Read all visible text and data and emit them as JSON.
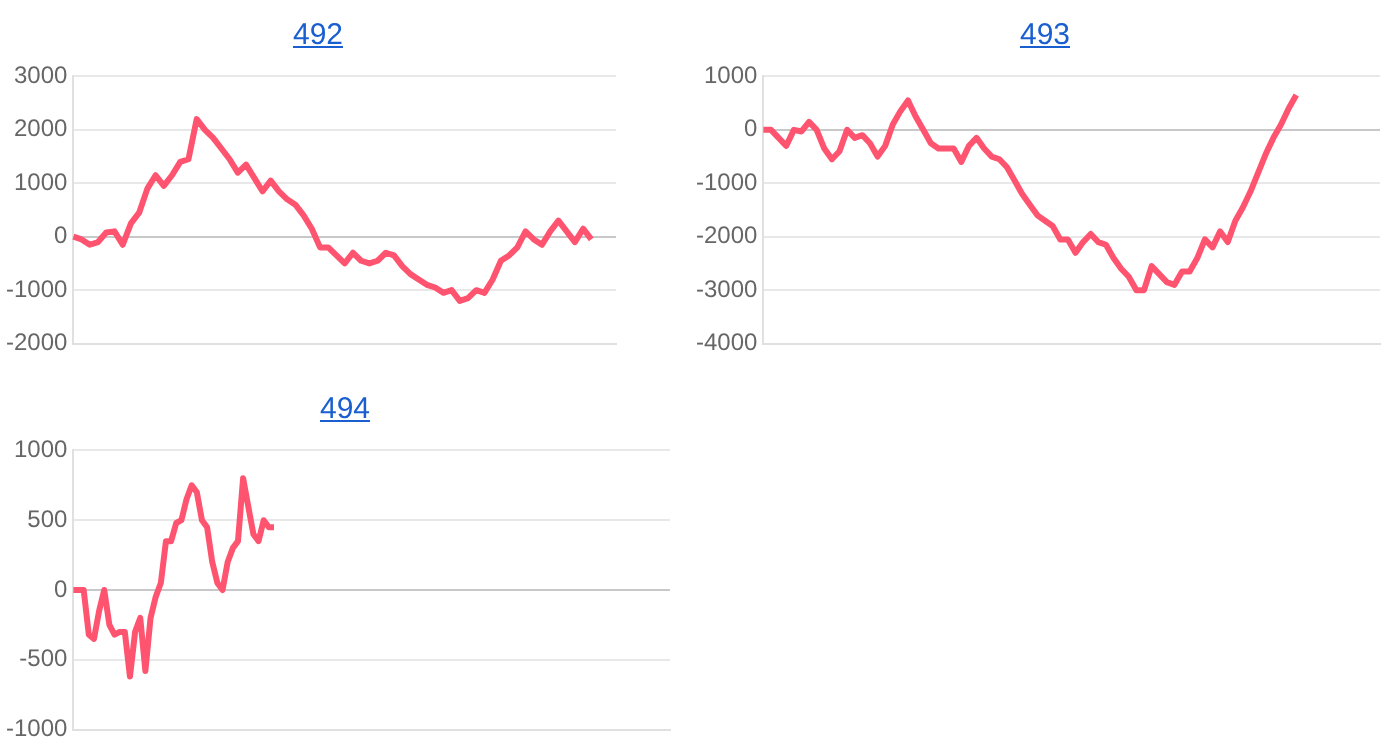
{
  "chart_data": [
    {
      "type": "line",
      "title": "492",
      "categories": [
        null,
        null,
        null,
        null,
        null,
        null,
        null,
        null,
        null,
        null,
        null,
        null,
        null,
        null,
        null,
        null,
        null,
        null,
        null,
        null,
        null,
        null,
        null,
        null,
        null,
        null,
        null,
        null,
        null,
        null,
        null,
        null,
        null,
        null,
        null,
        null,
        null,
        null,
        null,
        null,
        null,
        null,
        null,
        null,
        null,
        null,
        null,
        null,
        null,
        null,
        null,
        null,
        null,
        null,
        null,
        null,
        null,
        null,
        null,
        null,
        null,
        null,
        null,
        null,
        null,
        null,
        null
      ],
      "series": [
        {
          "color": "#ff5470",
          "values": [
            0,
            -50,
            -150,
            -100,
            80,
            100,
            -150,
            250,
            450,
            900,
            1150,
            950,
            1150,
            1400,
            1450,
            2200,
            2000,
            1850,
            1650,
            1450,
            1200,
            1350,
            1100,
            850,
            1050,
            850,
            700,
            600,
            400,
            150,
            -200,
            -200,
            -350,
            -500,
            -300,
            -450,
            -500,
            -450,
            -300,
            -350,
            -550,
            -700,
            -800,
            -900,
            -950,
            -1050,
            -1000,
            -1200,
            -1150,
            -1000,
            -1050,
            -800,
            -450,
            -350,
            -200,
            100,
            -50,
            -150,
            100,
            300,
            100,
            -100,
            150,
            -50,
            null,
            null,
            null
          ]
        }
      ],
      "ylim": [
        -2000,
        3000
      ],
      "yticks": [
        -2000,
        -1000,
        0,
        1000,
        2000,
        3000
      ],
      "grid": "y",
      "legend": false,
      "marker": "none",
      "line_style": "solid",
      "tick_labels": "y"
    },
    {
      "type": "line",
      "title": "493",
      "categories": [
        null,
        null,
        null,
        null,
        null,
        null,
        null,
        null,
        null,
        null,
        null,
        null,
        null,
        null,
        null,
        null,
        null,
        null,
        null,
        null,
        null,
        null,
        null,
        null,
        null,
        null,
        null,
        null,
        null,
        null,
        null,
        null,
        null,
        null,
        null,
        null,
        null,
        null,
        null,
        null,
        null,
        null,
        null,
        null,
        null,
        null,
        null,
        null,
        null,
        null,
        null,
        null,
        null,
        null,
        null,
        null,
        null,
        null,
        null,
        null,
        null,
        null,
        null,
        null,
        null,
        null,
        null,
        null,
        null,
        null,
        null,
        null,
        null,
        null,
        null,
        null,
        null,
        null,
        null,
        null,
        null,
        null
      ],
      "series": [
        {
          "color": "#ff5470",
          "values": [
            0,
            0,
            -150,
            -300,
            0,
            -30,
            150,
            0,
            -350,
            -550,
            -400,
            0,
            -150,
            -100,
            -250,
            -500,
            -300,
            100,
            350,
            550,
            250,
            0,
            -250,
            -350,
            -350,
            -350,
            -600,
            -300,
            -150,
            -350,
            -500,
            -550,
            -700,
            -950,
            -1200,
            -1400,
            -1600,
            -1700,
            -1800,
            -2050,
            -2050,
            -2300,
            -2100,
            -1950,
            -2100,
            -2150,
            -2400,
            -2600,
            -2750,
            -3000,
            -3000,
            -2550,
            -2700,
            -2850,
            -2900,
            -2650,
            -2650,
            -2400,
            -2050,
            -2200,
            -1900,
            -2100,
            -1700,
            -1450,
            -1150,
            -800,
            -450,
            -150,
            100,
            400,
            650,
            null,
            null,
            null,
            null,
            null,
            null,
            null,
            null,
            null,
            null,
            null
          ]
        }
      ],
      "ylim": [
        -4000,
        1000
      ],
      "yticks": [
        -4000,
        -3000,
        -2000,
        -1000,
        0,
        1000
      ],
      "grid": "y",
      "legend": false,
      "marker": "none",
      "line_style": "solid",
      "tick_labels": "y"
    },
    {
      "type": "line",
      "title": "494",
      "categories": [
        null,
        null,
        null,
        null,
        null,
        null,
        null,
        null,
        null,
        null,
        null,
        null,
        null,
        null,
        null,
        null,
        null,
        null,
        null,
        null,
        null,
        null,
        null,
        null,
        null,
        null,
        null,
        null,
        null,
        null,
        null,
        null,
        null,
        null,
        null,
        null,
        null,
        null,
        null,
        null,
        null,
        null,
        null,
        null,
        null,
        null,
        null,
        null,
        null,
        null,
        null,
        null,
        null,
        null,
        null,
        null,
        null,
        null,
        null,
        null,
        null,
        null,
        null,
        null,
        null,
        null,
        null,
        null,
        null,
        null,
        null,
        null,
        null,
        null,
        null,
        null,
        null,
        null,
        null,
        null,
        null,
        null,
        null,
        null,
        null,
        null,
        null,
        null,
        null,
        null,
        null,
        null,
        null,
        null,
        null,
        null,
        null,
        null,
        null,
        null,
        null,
        null,
        null,
        null,
        null,
        null,
        null,
        null,
        null,
        null,
        null,
        null,
        null,
        null,
        null,
        null,
        null
      ],
      "series": [
        {
          "color": "#ff5470",
          "values": [
            0,
            0,
            0,
            -320,
            -350,
            -150,
            0,
            -250,
            -320,
            -300,
            -300,
            -620,
            -300,
            -200,
            -580,
            -200,
            -50,
            50,
            350,
            350,
            480,
            500,
            650,
            750,
            700,
            500,
            450,
            200,
            50,
            0,
            200,
            300,
            350,
            800,
            600,
            400,
            350,
            500,
            450,
            450,
            null,
            null,
            null,
            null,
            null,
            null,
            null,
            null,
            null,
            null,
            null,
            null,
            null,
            null,
            null,
            null,
            null,
            null,
            null,
            null,
            null,
            null,
            null,
            null,
            null,
            null,
            null,
            null,
            null,
            null,
            null,
            null,
            null,
            null,
            null,
            null,
            null,
            null,
            null,
            null,
            null,
            null,
            null,
            null,
            null,
            null,
            null,
            null,
            null,
            null,
            null,
            null,
            null,
            null,
            null,
            null,
            null,
            null,
            null,
            null,
            null,
            null,
            null,
            null,
            null,
            null,
            null,
            null,
            null,
            null,
            null,
            null,
            null,
            null,
            null,
            null,
            null
          ]
        }
      ],
      "ylim": [
        -1000,
        1000
      ],
      "yticks": [
        -1000,
        -500,
        0,
        500,
        1000
      ],
      "grid": "y",
      "legend": false,
      "marker": "none",
      "line_style": "solid",
      "tick_labels": "y"
    }
  ]
}
